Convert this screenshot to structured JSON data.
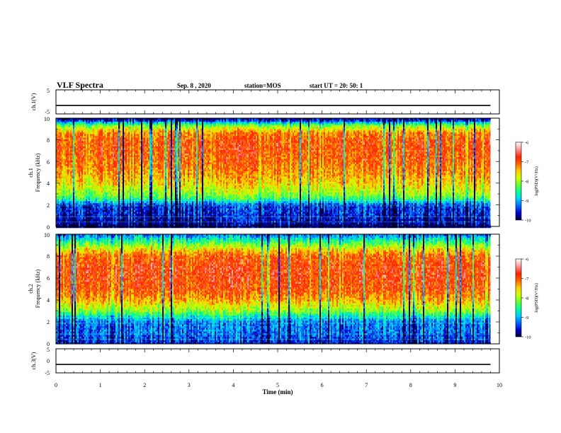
{
  "header": {
    "title": "VLF Spectra",
    "date": "Sep. 8 , 2020",
    "station": "station=MOS",
    "start": "start  UT =   20: 50: 1"
  },
  "chart_data": [
    {
      "type": "line",
      "panel": "ch1-waveform",
      "ylabel": "ch.1(V)",
      "ylim": [
        -5,
        5
      ],
      "yticks": [
        "5",
        "-5"
      ],
      "x": [
        0,
        1,
        2,
        3,
        4,
        5,
        6,
        7,
        8,
        9,
        9.8
      ],
      "values": [
        -1.5,
        -1.5,
        -1.5,
        -1.5,
        -1.5,
        -1.5,
        -1.5,
        -1.5,
        -1.5,
        -1.5,
        -1.5
      ]
    },
    {
      "type": "heatmap",
      "panel": "ch1-spectrogram",
      "ylabel": "ch.1",
      "ylabel2": "Frequency  (kHz)",
      "ylim": [
        0,
        10
      ],
      "xlim": [
        0,
        10
      ],
      "yticks": [
        "0",
        "2",
        "4",
        "6",
        "8",
        "10"
      ],
      "data_extent_x": [
        0,
        9.8
      ],
      "colorbar": {
        "label": "log(PSD)(V²/Hz)",
        "ticks": [
          "-6",
          "-7",
          "-8",
          "-9",
          "-10"
        ],
        "range": [
          -10,
          -6
        ]
      },
      "profile_freq_khz": [
        0.0,
        0.5,
        1.0,
        1.5,
        2.0,
        2.6,
        3.0,
        4.0,
        5.0,
        6.0,
        7.0,
        8.0,
        8.7,
        9.3,
        9.8,
        10.0
      ],
      "profile_logpsd": [
        -9.8,
        -9.6,
        -9.5,
        -9.4,
        -9.4,
        -8.4,
        -8.0,
        -7.5,
        -7.2,
        -7.0,
        -6.9,
        -6.9,
        -7.2,
        -8.0,
        -9.5,
        -9.8
      ]
    },
    {
      "type": "heatmap",
      "panel": "ch2-spectrogram",
      "ylabel": "ch.2",
      "ylabel2": "Frequency  (kHz)",
      "ylim": [
        0,
        10
      ],
      "xlim": [
        0,
        10
      ],
      "yticks": [
        "0",
        "2",
        "4",
        "6",
        "8",
        "10"
      ],
      "data_extent_x": [
        0,
        9.8
      ],
      "colorbar": {
        "label": "log(PSD)(V²/Hz)",
        "ticks": [
          "-6",
          "-7",
          "-8",
          "-9",
          "-10"
        ],
        "range": [
          -10,
          -6
        ]
      },
      "profile_freq_khz": [
        0.0,
        0.5,
        1.0,
        2.0,
        2.5,
        3.0,
        4.0,
        5.0,
        6.0,
        7.0,
        8.0,
        8.5,
        9.0,
        9.5,
        10.0
      ],
      "profile_logpsd": [
        -9.5,
        -9.3,
        -9.2,
        -9.1,
        -8.6,
        -8.0,
        -7.3,
        -6.9,
        -6.8,
        -6.8,
        -7.0,
        -7.4,
        -8.0,
        -8.6,
        -9.2
      ]
    },
    {
      "type": "line",
      "panel": "ch3-waveform",
      "ylabel": "ch.3(V)",
      "ylim": [
        -5,
        5
      ],
      "yticks": [
        "5",
        "0",
        "-5"
      ],
      "x": [
        0,
        9.8
      ],
      "values": [
        -1.5,
        -1.5
      ]
    }
  ],
  "xaxis": {
    "label": "Time  (min)",
    "ticks": [
      "0",
      "1",
      "2",
      "3",
      "4",
      "5",
      "6",
      "7",
      "8",
      "9",
      "10"
    ]
  },
  "colors": {
    "colormap": [
      "#000033",
      "#0000cc",
      "#0066ff",
      "#00ccff",
      "#00ff99",
      "#66ff33",
      "#ccff00",
      "#ffcc00",
      "#ff6600",
      "#ff2200",
      "#ff9999",
      "#ffffff"
    ]
  }
}
